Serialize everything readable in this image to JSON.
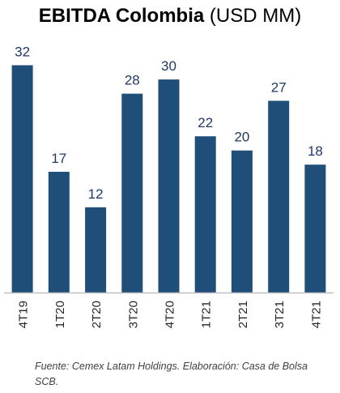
{
  "chart_data": {
    "type": "bar",
    "title": "EBITDA Colombia",
    "subtitle": "(USD MM)",
    "categories": [
      "4T19",
      "1T20",
      "2T20",
      "3T20",
      "4T20",
      "1T21",
      "2T21",
      "3T21",
      "4T21"
    ],
    "values": [
      32,
      17,
      12,
      28,
      30,
      22,
      20,
      27,
      18
    ],
    "ylim": [
      0,
      34
    ],
    "xlabel": "",
    "ylabel": "",
    "grid": false,
    "legend": "none",
    "bar_color": "#1f4e79",
    "label_color": "#1f3864",
    "axis_color": "#bfbfbf"
  },
  "footer": {
    "source": "Fuente: Cemex Latam Holdings. Elaboración: Casa de Bolsa SCB."
  }
}
